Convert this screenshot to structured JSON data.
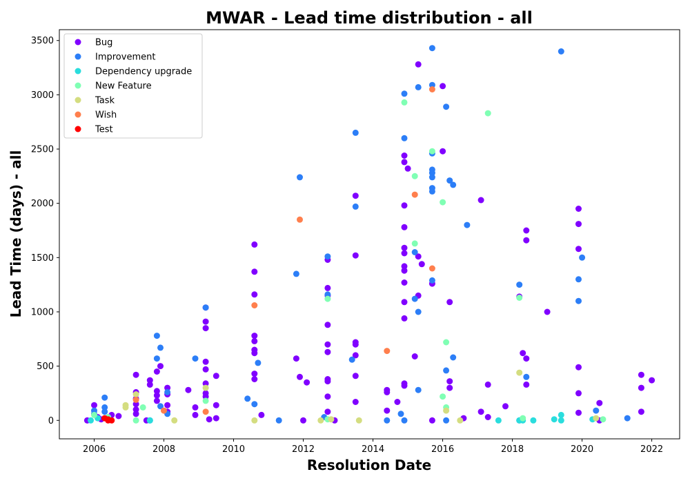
{
  "chart_data": {
    "type": "scatter",
    "title": "MWAR - Lead time distribution - all",
    "xlabel": "Resolution Date",
    "ylabel": "Lead Time (days) - all",
    "xlim": [
      2005,
      2022.8
    ],
    "ylim": [
      -170,
      3600
    ],
    "xticks": [
      2006,
      2008,
      2010,
      2012,
      2014,
      2016,
      2018,
      2020,
      2022
    ],
    "yticks": [
      0,
      500,
      1000,
      1500,
      2000,
      2500,
      3000,
      3500
    ],
    "legend_position": "upper left",
    "series": [
      {
        "name": "Bug",
        "color": "#8000ff",
        "points": [
          [
            2005.8,
            0
          ],
          [
            2006,
            140
          ],
          [
            2006.1,
            30
          ],
          [
            2006.2,
            10
          ],
          [
            2006.5,
            50
          ],
          [
            2006.7,
            40
          ],
          [
            2007.2,
            420
          ],
          [
            2007.2,
            260
          ],
          [
            2007.2,
            200
          ],
          [
            2007.2,
            150
          ],
          [
            2007.2,
            100
          ],
          [
            2007.2,
            60
          ],
          [
            2007.5,
            0
          ],
          [
            2007.6,
            370
          ],
          [
            2007.6,
            330
          ],
          [
            2007.8,
            270
          ],
          [
            2007.8,
            230
          ],
          [
            2007.8,
            180
          ],
          [
            2007.8,
            450
          ],
          [
            2007.9,
            500
          ],
          [
            2008.1,
            300
          ],
          [
            2008.1,
            240
          ],
          [
            2008.1,
            140
          ],
          [
            2008.1,
            80
          ],
          [
            2008.7,
            280
          ],
          [
            2008.9,
            120
          ],
          [
            2008.9,
            50
          ],
          [
            2009.2,
            1040
          ],
          [
            2009.2,
            910
          ],
          [
            2009.2,
            850
          ],
          [
            2009.2,
            540
          ],
          [
            2009.2,
            470
          ],
          [
            2009.2,
            340
          ],
          [
            2009.2,
            250
          ],
          [
            2009.2,
            220
          ],
          [
            2009.3,
            10
          ],
          [
            2009.5,
            410
          ],
          [
            2009.5,
            140
          ],
          [
            2009.5,
            20
          ],
          [
            2010.6,
            1620
          ],
          [
            2010.6,
            1370
          ],
          [
            2010.6,
            1160
          ],
          [
            2010.6,
            780
          ],
          [
            2010.6,
            730
          ],
          [
            2010.6,
            650
          ],
          [
            2010.6,
            620
          ],
          [
            2010.6,
            430
          ],
          [
            2010.6,
            380
          ],
          [
            2010.8,
            50
          ],
          [
            2011.8,
            570
          ],
          [
            2011.9,
            400
          ],
          [
            2012,
            0
          ],
          [
            2012.1,
            350
          ],
          [
            2012.7,
            1480
          ],
          [
            2012.7,
            1220
          ],
          [
            2012.7,
            1150
          ],
          [
            2012.7,
            880
          ],
          [
            2012.7,
            700
          ],
          [
            2012.7,
            630
          ],
          [
            2012.7,
            380
          ],
          [
            2012.7,
            360
          ],
          [
            2012.7,
            220
          ],
          [
            2012.7,
            80
          ],
          [
            2012.9,
            0
          ],
          [
            2013.5,
            1520
          ],
          [
            2013.5,
            2070
          ],
          [
            2013.5,
            720
          ],
          [
            2013.5,
            700
          ],
          [
            2013.5,
            600
          ],
          [
            2013.5,
            410
          ],
          [
            2013.5,
            170
          ],
          [
            2014.4,
            280
          ],
          [
            2014.4,
            260
          ],
          [
            2014.4,
            90
          ],
          [
            2014.7,
            170
          ],
          [
            2014.9,
            2440
          ],
          [
            2014.9,
            2380
          ],
          [
            2014.9,
            1980
          ],
          [
            2014.9,
            1780
          ],
          [
            2014.9,
            1590
          ],
          [
            2014.9,
            1540
          ],
          [
            2014.9,
            1420
          ],
          [
            2014.9,
            1380
          ],
          [
            2014.9,
            1270
          ],
          [
            2014.9,
            1090
          ],
          [
            2014.9,
            940
          ],
          [
            2014.9,
            340
          ],
          [
            2014.9,
            320
          ],
          [
            2015,
            2320
          ],
          [
            2015.2,
            590
          ],
          [
            2015.3,
            3280
          ],
          [
            2015.3,
            1510
          ],
          [
            2015.3,
            1150
          ],
          [
            2015.4,
            1440
          ],
          [
            2015.7,
            1260
          ],
          [
            2015.7,
            0
          ],
          [
            2016,
            3080
          ],
          [
            2016,
            2480
          ],
          [
            2016.2,
            1090
          ],
          [
            2016.2,
            360
          ],
          [
            2016.2,
            300
          ],
          [
            2016.6,
            20
          ],
          [
            2017.1,
            2030
          ],
          [
            2017.1,
            80
          ],
          [
            2017.3,
            330
          ],
          [
            2017.3,
            30
          ],
          [
            2017.8,
            130
          ],
          [
            2018.2,
            1140
          ],
          [
            2018.3,
            620
          ],
          [
            2018.4,
            1750
          ],
          [
            2018.4,
            1660
          ],
          [
            2018.4,
            570
          ],
          [
            2018.4,
            330
          ],
          [
            2019,
            1000
          ],
          [
            2019.9,
            1950
          ],
          [
            2019.9,
            1810
          ],
          [
            2019.9,
            1580
          ],
          [
            2019.9,
            490
          ],
          [
            2019.9,
            250
          ],
          [
            2019.9,
            70
          ],
          [
            2020.5,
            160
          ],
          [
            2020.5,
            0
          ],
          [
            2021.7,
            420
          ],
          [
            2021.7,
            300
          ],
          [
            2021.7,
            80
          ],
          [
            2022,
            370
          ]
        ]
      },
      {
        "name": "Improvement",
        "color": "#2c7ef7",
        "points": [
          [
            2006,
            90
          ],
          [
            2006,
            60
          ],
          [
            2006.3,
            210
          ],
          [
            2006.3,
            120
          ],
          [
            2006.3,
            80
          ],
          [
            2007.6,
            0
          ],
          [
            2007.8,
            780
          ],
          [
            2007.8,
            570
          ],
          [
            2007.9,
            670
          ],
          [
            2007.9,
            130
          ],
          [
            2008.1,
            260
          ],
          [
            2008.1,
            60
          ],
          [
            2008.9,
            570
          ],
          [
            2009.2,
            1040
          ],
          [
            2010.4,
            200
          ],
          [
            2010.6,
            150
          ],
          [
            2010.7,
            530
          ],
          [
            2011.3,
            0
          ],
          [
            2011.8,
            1350
          ],
          [
            2011.9,
            2240
          ],
          [
            2012.7,
            1510
          ],
          [
            2012.7,
            1160
          ],
          [
            2012.6,
            30
          ],
          [
            2013.4,
            560
          ],
          [
            2013.5,
            2650
          ],
          [
            2013.5,
            1970
          ],
          [
            2014.4,
            0
          ],
          [
            2014.8,
            60
          ],
          [
            2014.9,
            3010
          ],
          [
            2014.9,
            2600
          ],
          [
            2014.9,
            0
          ],
          [
            2015.2,
            1550
          ],
          [
            2015.2,
            1120
          ],
          [
            2015.3,
            3070
          ],
          [
            2015.3,
            1000
          ],
          [
            2015.3,
            280
          ],
          [
            2015.7,
            3430
          ],
          [
            2015.7,
            3090
          ],
          [
            2015.7,
            2460
          ],
          [
            2015.7,
            2310
          ],
          [
            2015.7,
            2280
          ],
          [
            2015.7,
            2240
          ],
          [
            2015.7,
            2140
          ],
          [
            2015.7,
            2110
          ],
          [
            2015.7,
            1290
          ],
          [
            2016.1,
            2890
          ],
          [
            2016.1,
            460
          ],
          [
            2016.2,
            2210
          ],
          [
            2016.3,
            2170
          ],
          [
            2016.3,
            580
          ],
          [
            2016.1,
            0
          ],
          [
            2016.7,
            1800
          ],
          [
            2018.2,
            1250
          ],
          [
            2018.2,
            0
          ],
          [
            2018.4,
            400
          ],
          [
            2019.4,
            3400
          ],
          [
            2019.9,
            1300
          ],
          [
            2019.9,
            1100
          ],
          [
            2020,
            1500
          ],
          [
            2020.4,
            90
          ],
          [
            2021.3,
            20
          ]
        ]
      },
      {
        "name": "Dependency upgrade",
        "color": "#2adddd",
        "points": [
          [
            2005.9,
            0
          ],
          [
            2006.1,
            20
          ],
          [
            2007.6,
            0
          ],
          [
            2017.6,
            0
          ],
          [
            2018.2,
            0
          ],
          [
            2018.3,
            0
          ],
          [
            2018.6,
            0
          ],
          [
            2019.2,
            10
          ],
          [
            2019.4,
            0
          ],
          [
            2019.4,
            50
          ],
          [
            2020.3,
            10
          ]
        ]
      },
      {
        "name": "New Feature",
        "color": "#80ffb4",
        "points": [
          [
            2006,
            50
          ],
          [
            2006.4,
            30
          ],
          [
            2007.2,
            0
          ],
          [
            2007.4,
            120
          ],
          [
            2009.2,
            180
          ],
          [
            2012.7,
            1120
          ],
          [
            2012.7,
            10
          ],
          [
            2014.9,
            2930
          ],
          [
            2015.2,
            2250
          ],
          [
            2015.2,
            1630
          ],
          [
            2015.7,
            2480
          ],
          [
            2016,
            2010
          ],
          [
            2016.1,
            720
          ],
          [
            2016,
            220
          ],
          [
            2016.1,
            120
          ],
          [
            2017.3,
            2830
          ],
          [
            2018.2,
            1130
          ],
          [
            2018.3,
            20
          ],
          [
            2020.6,
            10
          ]
        ]
      },
      {
        "name": "Task",
        "color": "#d4dd80",
        "points": [
          [
            2006.9,
            140
          ],
          [
            2006.9,
            120
          ],
          [
            2007.2,
            240
          ],
          [
            2008.3,
            0
          ],
          [
            2009.2,
            300
          ],
          [
            2010.6,
            0
          ],
          [
            2012.5,
            0
          ],
          [
            2012.8,
            10
          ],
          [
            2013.6,
            0
          ],
          [
            2016.1,
            90
          ],
          [
            2016.5,
            0
          ],
          [
            2018.2,
            440
          ],
          [
            2020.4,
            20
          ]
        ]
      },
      {
        "name": "Wish",
        "color": "#ff7f4d",
        "points": [
          [
            2007.2,
            190
          ],
          [
            2009.2,
            80
          ],
          [
            2010.6,
            1060
          ],
          [
            2011.9,
            1850
          ],
          [
            2014.4,
            640
          ],
          [
            2015.2,
            2080
          ],
          [
            2015.7,
            3050
          ],
          [
            2015.7,
            1400
          ],
          [
            2008,
            90
          ]
        ]
      },
      {
        "name": "Test",
        "color": "#ff0000",
        "points": [
          [
            2006.3,
            20
          ],
          [
            2006.4,
            0
          ],
          [
            2006.5,
            0
          ],
          [
            2006.4,
            10
          ]
        ]
      }
    ]
  }
}
